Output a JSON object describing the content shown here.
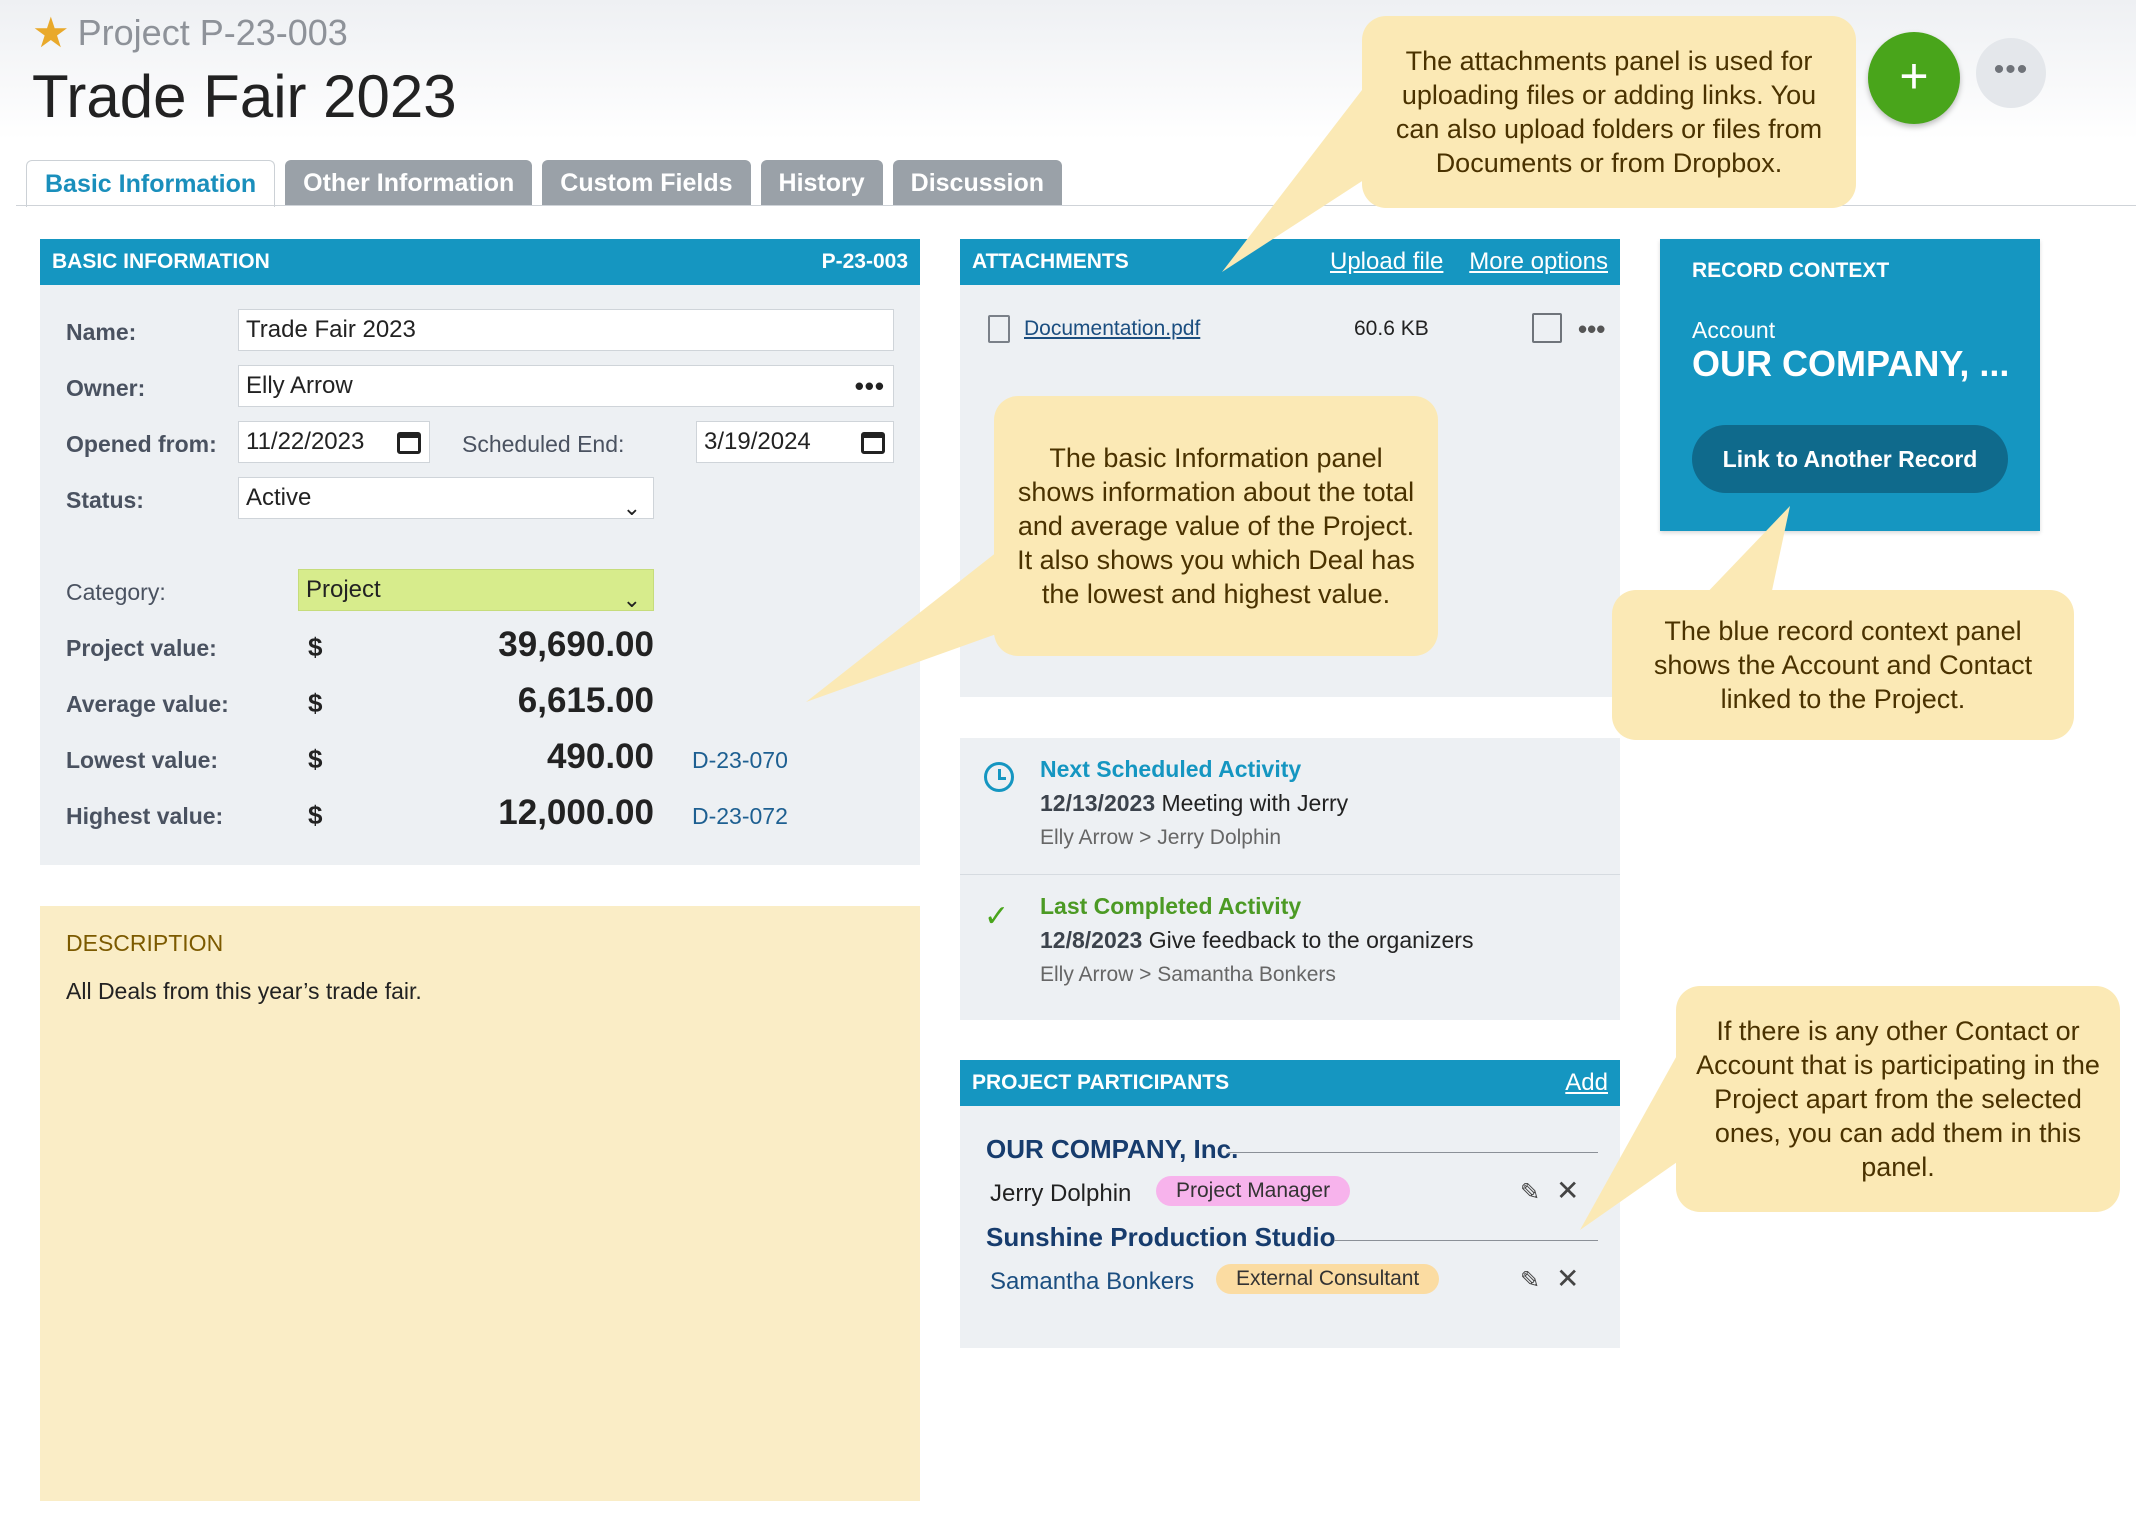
{
  "header": {
    "project_label": "Project",
    "project_id": "P-23-003",
    "title": "Trade Fair 2023",
    "add_label": "+",
    "more_label": "•••"
  },
  "tabs": [
    {
      "label": "Basic Information",
      "active": true
    },
    {
      "label": "Other Information"
    },
    {
      "label": "Custom Fields"
    },
    {
      "label": "History"
    },
    {
      "label": "Discussion"
    }
  ],
  "basic": {
    "heading": "BASIC INFORMATION",
    "record_id": "P-23-003",
    "name_label": "Name:",
    "name_value": "Trade Fair 2023",
    "owner_label": "Owner:",
    "owner_value": "Elly Arrow",
    "opened_label": "Opened from:",
    "opened_value": "11/22/2023",
    "sched_label": "Scheduled End:",
    "sched_value": "3/19/2024",
    "status_label": "Status:",
    "status_value": "Active",
    "category_label": "Category:",
    "category_value": "Project",
    "project_value_label": "Project value:",
    "project_value": "39,690.00",
    "average_label": "Average value:",
    "average_value": "6,615.00",
    "lowest_label": "Lowest value:",
    "lowest_value": "490.00",
    "lowest_deal": "D-23-070",
    "highest_label": "Highest value:",
    "highest_value": "12,000.00",
    "highest_deal": "D-23-072",
    "currency": "$"
  },
  "description": {
    "title": "DESCRIPTION",
    "text": "All Deals from this year’s trade fair."
  },
  "attachments": {
    "heading": "ATTACHMENTS",
    "upload_label": "Upload file",
    "more_label": "More options",
    "file_name": "Documentation.pdf",
    "file_size": "60.6 KB"
  },
  "activities": {
    "next_title": "Next Scheduled Activity",
    "next_date": "12/13/2023",
    "next_subject": "Meeting with Jerry",
    "next_people": "Elly Arrow > Jerry Dolphin",
    "last_title": "Last Completed Activity",
    "last_date": "12/8/2023",
    "last_subject": "Give feedback to the organizers",
    "last_people": "Elly Arrow > Samantha Bonkers"
  },
  "participants": {
    "heading": "PROJECT PARTICIPANTS",
    "add_label": "Add",
    "org1": "OUR COMPANY, Inc.",
    "person1": "Jerry Dolphin",
    "role1": "Project Manager",
    "org2": "Sunshine Production Studio",
    "person2": "Samantha Bonkers",
    "role2": "External Consultant"
  },
  "record_context": {
    "title": "RECORD CONTEXT",
    "account_label": "Account",
    "account_value": "OUR COMPANY, ...",
    "link_button": "Link to Another Record"
  },
  "callouts": {
    "attachments": "The attachments panel is used for uploading files or adding links. You can also upload folders or files from Documents or from Dropbox.",
    "basic": "The basic Information panel shows information about the total and average value of the Project. It also shows you which Deal has the lowest and highest value.",
    "record": "The blue record context panel shows the Account and Contact linked to the Project.",
    "participants": "If there is any other Contact or Account that is participating in the Project apart from the selected ones, you can add them in this panel."
  },
  "colors": {
    "accent": "#1596c1",
    "add_button": "#49a51b",
    "callout": "#fbe9b5",
    "description_bg": "#faedc6",
    "category_bg": "#d7ec8c"
  }
}
